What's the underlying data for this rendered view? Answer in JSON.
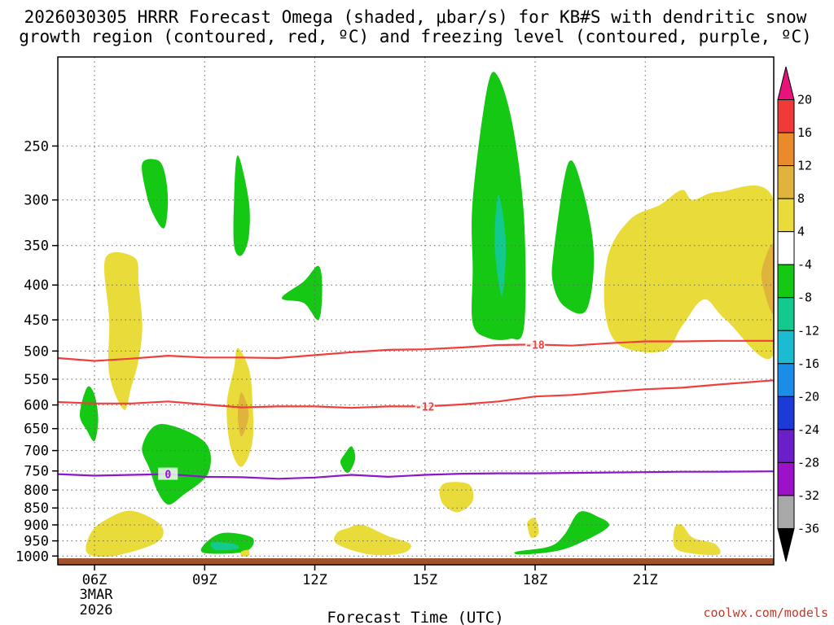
{
  "chart_data": {
    "type": "heatmap",
    "title": [
      "2026030305 HRRR Forecast Omega (shaded, μbar/s) for KB#S with dendritic snow",
      "growth region (contoured, red, ºC) and freezing level (contoured, purple, ºC)"
    ],
    "xlabel": "Forecast Time (UTC)",
    "ylabel": "",
    "x_ticks": [
      "06Z",
      "09Z",
      "12Z",
      "15Z",
      "18Z",
      "21Z"
    ],
    "x_tick_hours": [
      6,
      9,
      12,
      15,
      18,
      21
    ],
    "x_date_label": [
      "3MAR",
      "2026"
    ],
    "x_range_hours": [
      5,
      24.5
    ],
    "y_ticks": [
      250,
      300,
      350,
      400,
      450,
      500,
      550,
      600,
      650,
      700,
      750,
      800,
      850,
      900,
      950,
      1000
    ],
    "y_range_hPa": [
      185,
      1030
    ],
    "y_scale": "log-pressure",
    "colorbar": {
      "label_values": [
        20,
        16,
        12,
        8,
        4,
        -4,
        -8,
        -12,
        -16,
        -20,
        -24,
        -28,
        -32,
        -36
      ],
      "colors": [
        "#e8137a",
        "#f03a3a",
        "#e98a2b",
        "#e0b43c",
        "#e9dc3a",
        "#ffffff",
        "#14c814",
        "#13c98e",
        "#1bbcd1",
        "#1a8de8",
        "#1c3ad6",
        "#6a1fc8",
        "#9b12c9",
        "#a8a8a8",
        "#000000"
      ]
    },
    "series": [
      {
        "name": "dendritic snow growth region (red, ºC)",
        "color": "#f03e3e",
        "lines": [
          {
            "value": -18,
            "label": "-18",
            "label_hour": 18,
            "x_hours": [
              5,
              6,
              7,
              8,
              9,
              10,
              11,
              12,
              13,
              14,
              15,
              16,
              17,
              18,
              19,
              20,
              21,
              22,
              23,
              24.5
            ],
            "y_hPa": [
              512,
              517,
              513,
              508,
              511,
              511,
              512,
              507,
              502,
              498,
              497,
              494,
              490,
              489,
              491,
              487,
              484,
              484,
              483,
              483
            ]
          },
          {
            "value": -12,
            "label": "-12",
            "label_hour": 15,
            "x_hours": [
              5,
              6,
              7,
              8,
              9,
              10,
              11,
              12,
              13,
              14,
              15,
              16,
              17,
              18,
              19,
              20,
              21,
              22,
              23,
              24.5
            ],
            "y_hPa": [
              594,
              597,
              597,
              593,
              599,
              605,
              603,
              603,
              606,
              603,
              603,
              599,
              593,
              583,
              580,
              574,
              569,
              566,
              560,
              552
            ]
          }
        ]
      },
      {
        "name": "freezing level (purple, ºC)",
        "color": "#8d16c8",
        "lines": [
          {
            "value": 0,
            "label": "0",
            "label_hour": 8,
            "x_hours": [
              5,
              6,
              7,
              8,
              9,
              10,
              11,
              12,
              13,
              14,
              15,
              16,
              17,
              18,
              19,
              20,
              21,
              22,
              23,
              24.5
            ],
            "y_hPa": [
              758,
              762,
              760,
              758,
              765,
              766,
              770,
              767,
              760,
              765,
              760,
              757,
              756,
              756,
              755,
              754,
              753,
              752,
              752,
              751
            ]
          }
        ]
      }
    ],
    "omega_regions": [
      {
        "level": -4,
        "points": [
          [
            7.3,
            265
          ],
          [
            7.7,
            262
          ],
          [
            7.9,
            272
          ],
          [
            8.0,
            300
          ],
          [
            7.9,
            330
          ],
          [
            7.6,
            315
          ],
          [
            7.4,
            292
          ]
        ]
      },
      {
        "level": -4,
        "points": [
          [
            9.9,
            258
          ],
          [
            10.2,
            300
          ],
          [
            10.2,
            340
          ],
          [
            10.0,
            362
          ],
          [
            9.8,
            350
          ],
          [
            9.8,
            300
          ]
        ]
      },
      {
        "level": -4,
        "points": [
          [
            11.7,
            395
          ],
          [
            12.1,
            375
          ],
          [
            12.2,
            405
          ],
          [
            12.1,
            450
          ],
          [
            11.7,
            425
          ],
          [
            11.1,
            418
          ]
        ]
      },
      {
        "level": -4,
        "points": [
          [
            5.8,
            565
          ],
          [
            6.0,
            580
          ],
          [
            6.1,
            630
          ],
          [
            6.0,
            678
          ],
          [
            5.8,
            655
          ],
          [
            5.6,
            620
          ]
        ]
      },
      {
        "level": -4,
        "points": [
          [
            7.3,
            690
          ],
          [
            7.8,
            640
          ],
          [
            9.0,
            680
          ],
          [
            9.1,
            755
          ],
          [
            8.4,
            815
          ],
          [
            8.0,
            840
          ],
          [
            7.7,
            800
          ],
          [
            7.5,
            745
          ]
        ]
      },
      {
        "level": -4,
        "points": [
          [
            12.8,
            710
          ],
          [
            13.0,
            690
          ],
          [
            13.1,
            720
          ],
          [
            12.9,
            755
          ],
          [
            12.7,
            730
          ]
        ]
      },
      {
        "level": -4,
        "points": [
          [
            16.3,
            300
          ],
          [
            16.7,
            205
          ],
          [
            17.0,
            198
          ],
          [
            17.4,
            235
          ],
          [
            17.7,
            320
          ],
          [
            17.7,
            460
          ],
          [
            17.3,
            480
          ],
          [
            16.7,
            478
          ],
          [
            16.3,
            455
          ],
          [
            16.3,
            380
          ]
        ]
      },
      {
        "level": -8,
        "points": [
          [
            17.0,
            295
          ],
          [
            17.2,
            345
          ],
          [
            17.1,
            415
          ],
          [
            16.9,
            350
          ]
        ]
      },
      {
        "level": -4,
        "points": [
          [
            18.5,
            360
          ],
          [
            18.9,
            265
          ],
          [
            19.3,
            290
          ],
          [
            19.6,
            360
          ],
          [
            19.4,
            435
          ],
          [
            18.8,
            430
          ],
          [
            18.5,
            400
          ]
        ]
      },
      {
        "level": -4,
        "points": [
          [
            17.5,
            985
          ],
          [
            18.4,
            968
          ],
          [
            18.8,
            930
          ],
          [
            19.2,
            862
          ],
          [
            19.7,
            875
          ],
          [
            20.0,
            905
          ],
          [
            19.2,
            958
          ],
          [
            18.5,
            985
          ],
          [
            17.6,
            995
          ]
        ]
      },
      {
        "level": -4,
        "points": [
          [
            9.5,
            925
          ],
          [
            10.3,
            940
          ],
          [
            10.1,
            985
          ],
          [
            9.0,
            990
          ],
          [
            9.0,
            960
          ]
        ]
      },
      {
        "level": -8,
        "points": [
          [
            9.2,
            955
          ],
          [
            9.8,
            960
          ],
          [
            9.9,
            975
          ],
          [
            9.3,
            980
          ]
        ]
      },
      {
        "level": 4,
        "points": [
          [
            6.3,
            365
          ],
          [
            7.1,
            365
          ],
          [
            7.2,
            400
          ],
          [
            7.3,
            460
          ],
          [
            7.2,
            515
          ],
          [
            7.0,
            565
          ],
          [
            6.8,
            610
          ],
          [
            6.4,
            540
          ],
          [
            6.4,
            450
          ]
        ]
      },
      {
        "level": 4,
        "points": [
          [
            9.9,
            495
          ],
          [
            10.2,
            530
          ],
          [
            10.3,
            590
          ],
          [
            10.3,
            680
          ],
          [
            10.0,
            740
          ],
          [
            9.7,
            690
          ],
          [
            9.6,
            600
          ],
          [
            9.8,
            530
          ]
        ]
      },
      {
        "level": 8,
        "points": [
          [
            10.0,
            575
          ],
          [
            10.2,
            620
          ],
          [
            10.0,
            668
          ],
          [
            9.9,
            620
          ]
        ]
      },
      {
        "level": 4,
        "points": [
          [
            5.9,
            925
          ],
          [
            6.3,
            885
          ],
          [
            7.0,
            858
          ],
          [
            7.8,
            900
          ],
          [
            7.7,
            955
          ],
          [
            6.5,
            1000
          ],
          [
            5.8,
            990
          ]
        ]
      },
      {
        "level": 4,
        "points": [
          [
            12.9,
            910
          ],
          [
            13.3,
            900
          ],
          [
            14.0,
            935
          ],
          [
            14.6,
            960
          ],
          [
            14.4,
            990
          ],
          [
            13.5,
            995
          ],
          [
            12.6,
            960
          ],
          [
            12.6,
            925
          ]
        ]
      },
      {
        "level": 4,
        "points": [
          [
            15.6,
            780
          ],
          [
            16.2,
            785
          ],
          [
            16.3,
            830
          ],
          [
            15.9,
            862
          ],
          [
            15.5,
            840
          ],
          [
            15.4,
            800
          ]
        ]
      },
      {
        "level": 4,
        "points": [
          [
            17.8,
            890
          ],
          [
            18.0,
            880
          ],
          [
            18.1,
            925
          ],
          [
            17.9,
            940
          ],
          [
            17.8,
            910
          ]
        ]
      },
      {
        "level": 4,
        "points": [
          [
            20.0,
            360
          ],
          [
            20.6,
            320
          ],
          [
            21.4,
            305
          ],
          [
            22.0,
            290
          ],
          [
            22.3,
            300
          ],
          [
            23.0,
            292
          ],
          [
            24.5,
            300
          ],
          [
            24.5,
            505
          ],
          [
            23.2,
            450
          ],
          [
            22.6,
            420
          ],
          [
            22.0,
            460
          ],
          [
            21.5,
            500
          ],
          [
            20.3,
            490
          ],
          [
            19.9,
            435
          ]
        ]
      },
      {
        "level": 8,
        "points": [
          [
            24.2,
            375
          ],
          [
            24.5,
            350
          ],
          [
            24.5,
            440
          ],
          [
            24.2,
            400
          ]
        ]
      },
      {
        "level": 4,
        "points": [
          [
            21.8,
            910
          ],
          [
            22.0,
            900
          ],
          [
            22.3,
            940
          ],
          [
            22.9,
            960
          ],
          [
            23.0,
            995
          ],
          [
            22.2,
            990
          ],
          [
            21.8,
            970
          ]
        ]
      },
      {
        "level": 4,
        "points": [
          [
            10.0,
            985
          ],
          [
            10.2,
            980
          ],
          [
            10.2,
            1000
          ],
          [
            10.0,
            1000
          ]
        ]
      }
    ],
    "surface_color": "#a0522d",
    "grid": true
  },
  "credit": "coolwx.com/models"
}
